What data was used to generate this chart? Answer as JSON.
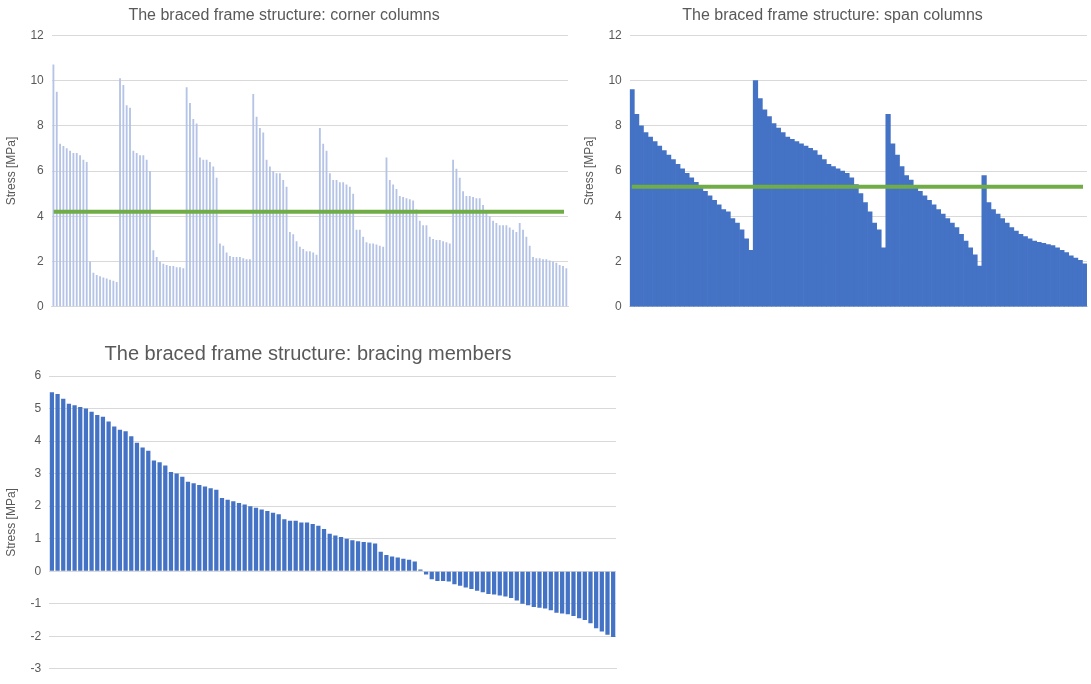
{
  "chart_data": [
    {
      "type": "bar",
      "title": "The braced frame structure: corner columns",
      "ylabel": "Stress [MPa]",
      "color": "#b4c3e6",
      "grid": "y",
      "legend": false,
      "tick_labels": "y",
      "ylim": [
        0,
        12
      ],
      "yticks": [
        0,
        2,
        4,
        6,
        8,
        10,
        12
      ],
      "categories": [
        null,
        null,
        null,
        null,
        null,
        null,
        null,
        null,
        null,
        null,
        null,
        null,
        null,
        null,
        null,
        null,
        null,
        null,
        null,
        null,
        null,
        null,
        null,
        null,
        null,
        null,
        null,
        null,
        null,
        null,
        null,
        null,
        null,
        null,
        null,
        null,
        null,
        null,
        null,
        null,
        null,
        null,
        null,
        null,
        null,
        null,
        null,
        null,
        null,
        null,
        null,
        null,
        null,
        null,
        null,
        null,
        null,
        null,
        null,
        null,
        null,
        null,
        null,
        null,
        null,
        null,
        null,
        null,
        null,
        null,
        null,
        null,
        null,
        null,
        null,
        null,
        null,
        null,
        null,
        null,
        null,
        null,
        null,
        null,
        null,
        null,
        null,
        null,
        null,
        null,
        null,
        null,
        null,
        null,
        null,
        null,
        null,
        null,
        null,
        null,
        null,
        null,
        null,
        null,
        null,
        null,
        null,
        null,
        null,
        null,
        null,
        null,
        null,
        null,
        null,
        null,
        null,
        null,
        null,
        null,
        null,
        null,
        null,
        null,
        null,
        null,
        null,
        null,
        null,
        null,
        null,
        null,
        null,
        null,
        null,
        null,
        null,
        null,
        null,
        null,
        null,
        null,
        null,
        null,
        null,
        null,
        null,
        null,
        null,
        null,
        null,
        null,
        null,
        null,
        null
      ],
      "values": [
        10.7,
        9.5,
        7.2,
        7.1,
        7.0,
        6.9,
        6.8,
        6.8,
        6.7,
        6.5,
        6.4,
        2.0,
        1.5,
        1.4,
        1.35,
        1.3,
        1.25,
        1.2,
        1.15,
        1.1,
        10.1,
        9.8,
        8.9,
        8.8,
        6.9,
        6.8,
        6.7,
        6.7,
        6.5,
        6.0,
        2.5,
        2.2,
        2.0,
        1.9,
        1.85,
        1.8,
        1.8,
        1.75,
        1.75,
        1.7,
        9.7,
        9.0,
        8.3,
        8.1,
        6.6,
        6.5,
        6.5,
        6.4,
        6.2,
        5.7,
        2.8,
        2.7,
        2.4,
        2.25,
        2.2,
        2.2,
        2.2,
        2.15,
        2.1,
        2.1,
        9.4,
        8.4,
        7.9,
        7.7,
        6.5,
        6.2,
        6.0,
        5.9,
        5.9,
        5.6,
        5.3,
        3.3,
        3.2,
        2.9,
        2.65,
        2.55,
        2.45,
        2.45,
        2.4,
        2.3,
        7.9,
        7.2,
        6.9,
        5.9,
        5.6,
        5.6,
        5.5,
        5.5,
        5.4,
        5.3,
        5.0,
        3.4,
        3.4,
        3.1,
        2.85,
        2.8,
        2.8,
        2.75,
        2.7,
        2.65,
        6.6,
        5.6,
        5.4,
        5.2,
        4.9,
        4.85,
        4.8,
        4.75,
        4.7,
        4.3,
        3.8,
        3.6,
        3.6,
        3.1,
        3.0,
        2.95,
        2.95,
        2.9,
        2.85,
        2.8,
        6.5,
        6.1,
        5.7,
        5.1,
        4.9,
        4.9,
        4.85,
        4.8,
        4.8,
        4.5,
        4.2,
        4.0,
        3.8,
        3.7,
        3.6,
        3.6,
        3.6,
        3.5,
        3.4,
        3.3,
        3.7,
        3.4,
        3.1,
        2.7,
        2.2,
        2.15,
        2.15,
        2.1,
        2.1,
        2.05,
        2.0,
        1.95,
        1.85,
        1.8,
        1.7
      ],
      "ref_lines": [
        {
          "axis": "y",
          "value": 4.2,
          "color": "#70ad47"
        }
      ]
    },
    {
      "type": "bar",
      "title": "The braced frame structure: span columns",
      "ylabel": "Stress [MPa]",
      "color": "#4472c4",
      "grid": "y",
      "legend": false,
      "tick_labels": "y",
      "ylim": [
        0,
        12
      ],
      "yticks": [
        0,
        2,
        4,
        6,
        8,
        10,
        12
      ],
      "categories": [
        null,
        null,
        null,
        null,
        null,
        null,
        null,
        null,
        null,
        null,
        null,
        null,
        null,
        null,
        null,
        null,
        null,
        null,
        null,
        null,
        null,
        null,
        null,
        null,
        null,
        null,
        null,
        null,
        null,
        null,
        null,
        null,
        null,
        null,
        null,
        null,
        null,
        null,
        null,
        null,
        null,
        null,
        null,
        null,
        null,
        null,
        null,
        null,
        null,
        null,
        null,
        null,
        null,
        null,
        null,
        null,
        null,
        null,
        null,
        null,
        null,
        null,
        null,
        null,
        null,
        null,
        null,
        null,
        null,
        null,
        null,
        null,
        null,
        null,
        null,
        null,
        null,
        null,
        null,
        null,
        null,
        null,
        null,
        null,
        null,
        null,
        null,
        null,
        null,
        null,
        null,
        null,
        null,
        null,
        null,
        null,
        null,
        null,
        null,
        null
      ],
      "values": [
        9.6,
        8.5,
        8.0,
        7.7,
        7.5,
        7.3,
        7.1,
        6.9,
        6.7,
        6.5,
        6.3,
        6.1,
        5.9,
        5.7,
        5.5,
        5.3,
        5.1,
        4.9,
        4.7,
        4.5,
        4.3,
        4.2,
        3.9,
        3.7,
        3.4,
        3.0,
        2.5,
        10.0,
        9.2,
        8.7,
        8.4,
        8.1,
        7.9,
        7.7,
        7.5,
        7.4,
        7.3,
        7.2,
        7.1,
        7.0,
        6.9,
        6.7,
        6.5,
        6.3,
        6.2,
        6.1,
        6.0,
        5.9,
        5.7,
        5.4,
        5.0,
        4.6,
        4.2,
        3.7,
        3.4,
        2.6,
        8.5,
        7.2,
        6.7,
        6.2,
        5.8,
        5.6,
        5.3,
        5.1,
        4.9,
        4.7,
        4.5,
        4.3,
        4.1,
        3.9,
        3.7,
        3.5,
        3.2,
        2.9,
        2.6,
        2.3,
        1.8,
        5.8,
        4.6,
        4.3,
        4.1,
        3.9,
        3.7,
        3.5,
        3.35,
        3.2,
        3.1,
        3.0,
        2.9,
        2.85,
        2.8,
        2.75,
        2.7,
        2.6,
        2.5,
        2.4,
        2.25,
        2.15,
        2.05,
        1.9
      ],
      "ref_lines": [
        {
          "axis": "y",
          "value": 5.3,
          "color": "#70ad47"
        }
      ]
    },
    {
      "type": "bar",
      "title": "The braced frame structure: bracing members",
      "ylabel": "Stress [MPa]",
      "color": "#4472c4",
      "grid": "y",
      "legend": false,
      "tick_labels": "y",
      "ylim": [
        -3,
        6
      ],
      "yticks": [
        -3,
        -2,
        -1,
        0,
        1,
        2,
        3,
        4,
        5,
        6
      ],
      "categories": [
        null,
        null,
        null,
        null,
        null,
        null,
        null,
        null,
        null,
        null,
        null,
        null,
        null,
        null,
        null,
        null,
        null,
        null,
        null,
        null,
        null,
        null,
        null,
        null,
        null,
        null,
        null,
        null,
        null,
        null,
        null,
        null,
        null,
        null,
        null,
        null,
        null,
        null,
        null,
        null,
        null,
        null,
        null,
        null,
        null,
        null,
        null,
        null,
        null,
        null,
        null,
        null,
        null,
        null,
        null,
        null,
        null,
        null,
        null,
        null,
        null,
        null,
        null,
        null,
        null,
        null,
        null,
        null,
        null,
        null,
        null,
        null,
        null,
        null,
        null,
        null,
        null,
        null,
        null,
        null,
        null,
        null,
        null,
        null,
        null,
        null,
        null,
        null,
        null,
        null,
        null,
        null,
        null,
        null,
        null,
        null,
        null,
        null,
        null,
        null
      ],
      "values": [
        5.5,
        5.45,
        5.3,
        5.15,
        5.1,
        5.05,
        5.0,
        4.9,
        4.8,
        4.75,
        4.6,
        4.45,
        4.35,
        4.3,
        4.15,
        3.95,
        3.8,
        3.7,
        3.4,
        3.35,
        3.25,
        3.05,
        3.0,
        2.9,
        2.75,
        2.7,
        2.65,
        2.6,
        2.55,
        2.5,
        2.25,
        2.2,
        2.15,
        2.1,
        2.05,
        2.0,
        1.95,
        1.9,
        1.85,
        1.8,
        1.75,
        1.6,
        1.55,
        1.55,
        1.5,
        1.5,
        1.45,
        1.4,
        1.3,
        1.15,
        1.1,
        1.05,
        1.0,
        0.95,
        0.92,
        0.9,
        0.88,
        0.85,
        0.6,
        0.5,
        0.45,
        0.42,
        0.38,
        0.35,
        0.3,
        0.05,
        -0.1,
        -0.25,
        -0.3,
        -0.3,
        -0.32,
        -0.4,
        -0.45,
        -0.5,
        -0.55,
        -0.6,
        -0.65,
        -0.7,
        -0.72,
        -0.75,
        -0.78,
        -0.82,
        -0.9,
        -1.0,
        -1.05,
        -1.1,
        -1.12,
        -1.15,
        -1.2,
        -1.28,
        -1.3,
        -1.32,
        -1.38,
        -1.45,
        -1.5,
        -1.6,
        -1.75,
        -1.85,
        -1.95,
        -2.02
      ]
    }
  ]
}
